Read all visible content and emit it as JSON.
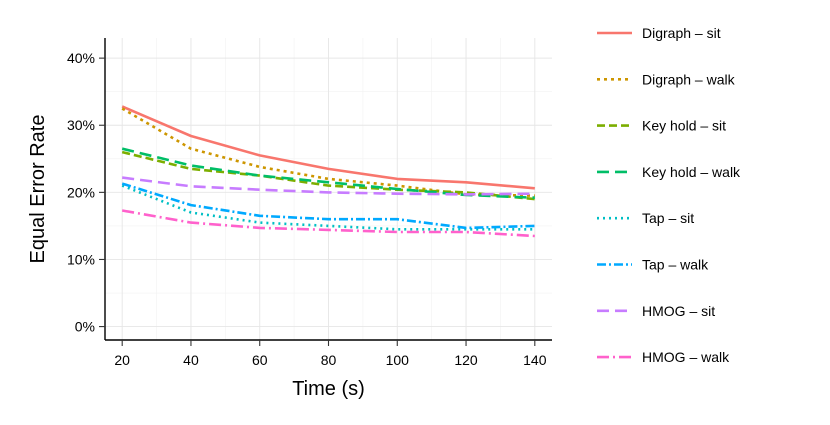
{
  "chart_data": {
    "type": "line",
    "title": "",
    "xlabel": "Time (s)",
    "ylabel": "Equal Error Rate",
    "xlim": [
      15,
      145
    ],
    "ylim": [
      -0.02,
      0.43
    ],
    "x_ticks": [
      20,
      40,
      60,
      80,
      100,
      120,
      140
    ],
    "y_ticks": [
      0,
      0.1,
      0.2,
      0.3,
      0.4
    ],
    "y_tick_labels": [
      "0%",
      "10%",
      "20%",
      "30%",
      "40%"
    ],
    "grid": true,
    "legend_position": "right",
    "x": [
      20,
      40,
      60,
      80,
      100,
      120,
      140
    ],
    "series": [
      {
        "name": "Digraph – sit",
        "color": "#F8766D",
        "dash": "solid",
        "values": [
          0.328,
          0.284,
          0.255,
          0.235,
          0.22,
          0.215,
          0.206
        ]
      },
      {
        "name": "Digraph – walk",
        "color": "#CD9600",
        "dash": "short-dash",
        "values": [
          0.325,
          0.265,
          0.238,
          0.22,
          0.21,
          0.197,
          0.195
        ]
      },
      {
        "name": "Key hold – sit",
        "color": "#7CAE00",
        "dash": "dash",
        "values": [
          0.26,
          0.235,
          0.225,
          0.21,
          0.204,
          0.2,
          0.19
        ]
      },
      {
        "name": "Key hold – walk",
        "color": "#00BE67",
        "dash": "long-dash",
        "values": [
          0.265,
          0.24,
          0.225,
          0.215,
          0.205,
          0.196,
          0.192
        ]
      },
      {
        "name": "Tap – sit",
        "color": "#00BFC4",
        "dash": "dot",
        "values": [
          0.21,
          0.17,
          0.155,
          0.15,
          0.145,
          0.145,
          0.145
        ]
      },
      {
        "name": "Tap – walk",
        "color": "#00A9FF",
        "dash": "dash-dot",
        "values": [
          0.213,
          0.181,
          0.165,
          0.16,
          0.16,
          0.147,
          0.15
        ]
      },
      {
        "name": "HMOG – sit",
        "color": "#C77CFF",
        "dash": "long-dash",
        "values": [
          0.222,
          0.209,
          0.204,
          0.2,
          0.198,
          0.197,
          0.198
        ]
      },
      {
        "name": "HMOG – walk",
        "color": "#FF61CC",
        "dash": "long-dash-dot",
        "values": [
          0.173,
          0.155,
          0.147,
          0.144,
          0.141,
          0.141,
          0.135
        ]
      }
    ]
  }
}
